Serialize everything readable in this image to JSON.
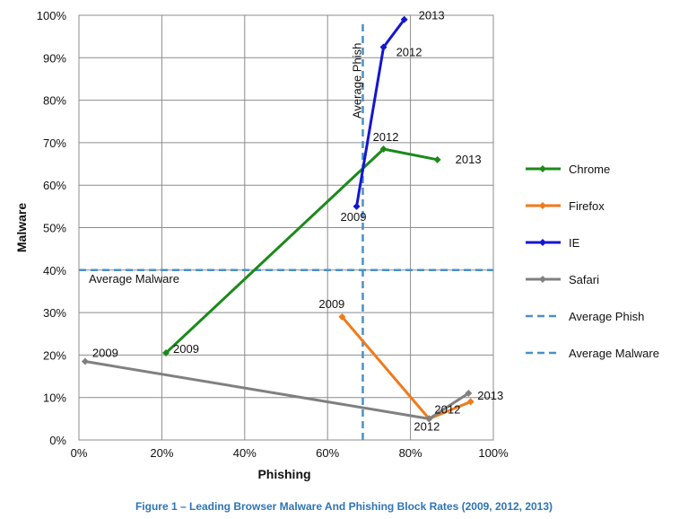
{
  "caption": "Figure 1 – Leading Browser Malware And Phishing Block Rates (2009, 2012, 2013)",
  "chart_data": {
    "type": "scatter",
    "xlabel": "Phishing",
    "ylabel": "Malware",
    "xlim": [
      0,
      100
    ],
    "ylim": [
      0,
      100
    ],
    "x_ticks": [
      "0%",
      "20%",
      "40%",
      "60%",
      "80%",
      "100%"
    ],
    "y_ticks": [
      "0%",
      "10%",
      "20%",
      "30%",
      "40%",
      "50%",
      "60%",
      "70%",
      "80%",
      "90%",
      "100%"
    ],
    "grid": true,
    "legend_position": "right",
    "series": [
      {
        "name": "Chrome",
        "color": "#1a8a1a",
        "points": [
          {
            "x": 21,
            "y": 20.5,
            "label": "2009"
          },
          {
            "x": 73.5,
            "y": 68.5,
            "label": "2012"
          },
          {
            "x": 86.5,
            "y": 66,
            "label": "2013"
          }
        ]
      },
      {
        "name": "Firefox",
        "color": "#f07a1a",
        "points": [
          {
            "x": 63.5,
            "y": 29,
            "label": "2009"
          },
          {
            "x": 84.5,
            "y": 5,
            "label": "2012"
          },
          {
            "x": 94.5,
            "y": 9,
            "label": ""
          }
        ]
      },
      {
        "name": "IE",
        "color": "#1515d0",
        "points": [
          {
            "x": 67,
            "y": 55,
            "label": "2009"
          },
          {
            "x": 73.5,
            "y": 92.5,
            "label": "2012"
          },
          {
            "x": 78.5,
            "y": 99,
            "label": "2013"
          }
        ]
      },
      {
        "name": "Safari",
        "color": "#808080",
        "points": [
          {
            "x": 1.5,
            "y": 18.5,
            "label": "2009"
          },
          {
            "x": 84.5,
            "y": 5,
            "label": ""
          },
          {
            "x": 94,
            "y": 11,
            "label": "2013"
          }
        ]
      }
    ],
    "reference_lines": [
      {
        "name": "Average Phish",
        "orientation": "vertical",
        "value": 68.5,
        "color": "#4a90c8",
        "label": "Average Phish"
      },
      {
        "name": "Average Malware",
        "orientation": "horizontal",
        "value": 40,
        "color": "#4a90c8",
        "label": "Average Malware"
      }
    ]
  }
}
